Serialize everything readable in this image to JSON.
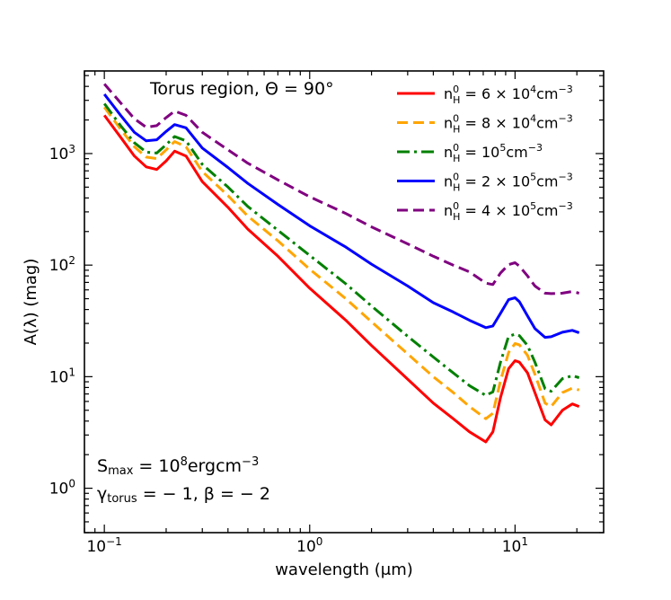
{
  "chart_data": {
    "type": "line",
    "title": "",
    "xlabel": "wavelength (μm)",
    "ylabel": "A(λ) (mag)",
    "xscale": "log",
    "yscale": "log",
    "xlim": [
      0.08,
      27
    ],
    "ylim": [
      0.4,
      5500
    ],
    "x_ticks": [
      {
        "value": 0.1,
        "base": "10",
        "exp": "−1"
      },
      {
        "value": 1,
        "base": "10",
        "exp": "0"
      },
      {
        "value": 10,
        "base": "10",
        "exp": "1"
      }
    ],
    "y_ticks": [
      {
        "value": 1,
        "base": "10",
        "exp": "0"
      },
      {
        "value": 10,
        "base": "10",
        "exp": "1"
      },
      {
        "value": 100,
        "base": "10",
        "exp": "2"
      },
      {
        "value": 1000,
        "base": "10",
        "exp": "3"
      }
    ],
    "grid": false,
    "legend_position": "top-right",
    "annotations": {
      "top": "Torus region, Θ = 90°",
      "smax_main": "S",
      "smax_sub": "max",
      "smax_rest": " = 10",
      "smax_exp": "8",
      "smax_unit": "ergcm",
      "smax_unit_exp": "−3",
      "gamma_main": "γ",
      "gamma_sub": "torus",
      "gamma_rest": " = − 1, β = − 2"
    },
    "series": [
      {
        "label": {
          "pre": "n",
          "sup": "0",
          "sub": "H",
          "mid": " = 6 × 10",
          "exp": "4",
          "unit": "cm",
          "unit_exp": "−3"
        },
        "color": "#ff0000",
        "dash": "",
        "x": [
          0.1,
          0.12,
          0.14,
          0.16,
          0.18,
          0.2,
          0.22,
          0.25,
          0.3,
          0.4,
          0.5,
          0.7,
          1,
          1.5,
          2,
          3,
          4,
          5,
          6,
          7.2,
          7.8,
          8.5,
          9.3,
          10,
          10.5,
          11.5,
          12.5,
          14,
          15,
          17,
          19,
          20.5
        ],
        "y": [
          2200,
          1400,
          950,
          760,
          720,
          860,
          1050,
          950,
          560,
          330,
          210,
          120,
          62,
          32,
          19,
          9.5,
          5.8,
          4.2,
          3.2,
          2.6,
          3.2,
          6.5,
          11.8,
          13.9,
          13.5,
          10.8,
          7.2,
          4.1,
          3.7,
          5.0,
          5.7,
          5.4
        ]
      },
      {
        "label": {
          "pre": "n",
          "sup": "0",
          "sub": "H",
          "mid": " = 8 × 10",
          "exp": "4",
          "unit": "cm",
          "unit_exp": "−3"
        },
        "color": "#ffa500",
        "dash": "12,6",
        "x": [
          0.1,
          0.12,
          0.14,
          0.16,
          0.18,
          0.2,
          0.22,
          0.25,
          0.3,
          0.4,
          0.5,
          0.7,
          1,
          1.5,
          2,
          3,
          4,
          5,
          6,
          7.2,
          7.8,
          8.5,
          9.3,
          10,
          10.5,
          11.5,
          12.5,
          14,
          15,
          17,
          19,
          20.5
        ],
        "y": [
          2600,
          1650,
          1150,
          930,
          900,
          1080,
          1280,
          1150,
          690,
          420,
          275,
          165,
          92,
          50,
          31,
          16,
          10,
          7.2,
          5.4,
          4.2,
          4.7,
          9.2,
          16.5,
          19.8,
          19.3,
          15.5,
          10.5,
          5.8,
          5.4,
          7.2,
          7.9,
          7.6
        ]
      },
      {
        "label": {
          "pre": "n",
          "sup": "0",
          "sub": "H",
          "mid": " = 10",
          "exp": "5",
          "unit": "cm",
          "unit_exp": "−3"
        },
        "color": "#008000",
        "dash": "14,5,3,5",
        "x": [
          0.1,
          0.12,
          0.14,
          0.16,
          0.18,
          0.2,
          0.22,
          0.25,
          0.3,
          0.4,
          0.5,
          0.7,
          1,
          1.5,
          2,
          3,
          4,
          5,
          6,
          7.2,
          7.8,
          8.5,
          9.3,
          10,
          10.5,
          11.5,
          12.5,
          14,
          15,
          17,
          19,
          20.5
        ],
        "y": [
          2800,
          1780,
          1250,
          1030,
          1010,
          1200,
          1420,
          1300,
          800,
          500,
          335,
          205,
          122,
          68,
          43,
          23,
          15,
          10.8,
          8.3,
          6.8,
          7.3,
          13.5,
          23.0,
          24.0,
          23.3,
          19.0,
          13.5,
          7.8,
          7.4,
          9.6,
          10.2,
          9.8
        ]
      },
      {
        "label": {
          "pre": "n",
          "sup": "0",
          "sub": "H",
          "mid": " = 2 × 10",
          "exp": "5",
          "unit": "cm",
          "unit_exp": "−3"
        },
        "color": "#0000ff",
        "dash": "",
        "x": [
          0.1,
          0.12,
          0.14,
          0.16,
          0.18,
          0.2,
          0.22,
          0.25,
          0.3,
          0.4,
          0.5,
          0.7,
          1,
          1.5,
          2,
          3,
          4,
          5,
          6,
          7.2,
          7.8,
          8.5,
          9.3,
          10,
          10.5,
          11.5,
          12.5,
          14,
          15,
          17,
          19,
          20.5
        ],
        "y": [
          3400,
          2200,
          1550,
          1300,
          1330,
          1580,
          1820,
          1700,
          1120,
          750,
          540,
          350,
          225,
          145,
          102,
          65,
          46,
          38,
          32,
          27.5,
          28.5,
          37,
          49,
          51,
          47,
          35,
          27,
          22.5,
          22.8,
          25,
          26,
          24.8
        ]
      },
      {
        "label": {
          "pre": "n",
          "sup": "0",
          "sub": "H",
          "mid": " = 4 × 10",
          "exp": "5",
          "unit": "cm",
          "unit_exp": "−3"
        },
        "color": "#800080",
        "dash": "12,6",
        "x": [
          0.1,
          0.12,
          0.14,
          0.16,
          0.18,
          0.2,
          0.22,
          0.25,
          0.3,
          0.4,
          0.5,
          0.7,
          1,
          1.5,
          2,
          3,
          4,
          5,
          6,
          7.2,
          7.8,
          8.5,
          9.3,
          10,
          10.5,
          11.5,
          12.5,
          14,
          15,
          17,
          19,
          20.5
        ],
        "y": [
          4200,
          2850,
          2050,
          1720,
          1780,
          2100,
          2400,
          2200,
          1550,
          1080,
          820,
          580,
          410,
          290,
          220,
          155,
          120,
          100,
          87,
          69,
          67,
          85,
          101,
          105,
          98,
          80,
          65,
          56,
          55.5,
          56,
          58,
          56
        ]
      }
    ]
  }
}
